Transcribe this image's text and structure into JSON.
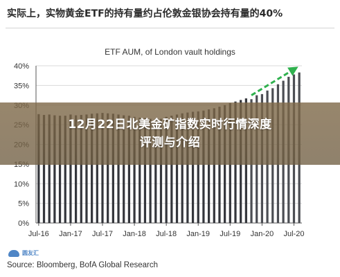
{
  "headline": "实际上，实物黄金ETF的持有量约占伦敦金银协会持有量的40%",
  "banner": {
    "line1": "12月22日北美金矿指数实时行情深度",
    "line2": "评测与介绍"
  },
  "logo_text": "圆友汇",
  "source": "Source: Bloomberg, BofA Global Research",
  "colors": {
    "bar": "#34363c",
    "bar_highlight": "#4c4e54",
    "trend_arrow": "#2fb14e",
    "grid": "#d9d9d9"
  },
  "chart_data": {
    "type": "bar",
    "title": "ETF AUM, of London vault holdings",
    "xlabel": "",
    "ylabel": "",
    "ylim": [
      0,
      40
    ],
    "y_ticks": [
      "0%",
      "5%",
      "10%",
      "15%",
      "20%",
      "25%",
      "30%",
      "35%",
      "40%"
    ],
    "x_tick_labels": [
      "Jul-16",
      "Jan-17",
      "Jul-17",
      "Jan-18",
      "Jul-18",
      "Jan-19",
      "Jul-19",
      "Jan-20",
      "Jul-20"
    ],
    "x_tick_index": [
      0,
      6,
      12,
      18,
      24,
      30,
      36,
      42,
      48
    ],
    "grid": true,
    "trend_arrow": {
      "from_index": 40,
      "to_index": 49,
      "from_value": 32.5,
      "to_value": 39.5
    },
    "values": [
      27.7,
      27.5,
      27.6,
      27.4,
      27.3,
      27.3,
      27.6,
      27.4,
      27.5,
      27.6,
      27.8,
      27.9,
      28.0,
      27.9,
      27.8,
      27.6,
      27.4,
      27.3,
      27.0,
      26.8,
      26.7,
      26.5,
      26.4,
      26.5,
      27.0,
      27.3,
      27.6,
      27.9,
      28.1,
      28.3,
      28.4,
      28.6,
      28.9,
      29.2,
      29.6,
      30.0,
      30.5,
      30.9,
      31.3,
      31.7,
      31.5,
      32.5,
      32.8,
      33.7,
      34.3,
      35.3,
      36.2,
      37.2,
      37.8,
      38.3
    ]
  }
}
